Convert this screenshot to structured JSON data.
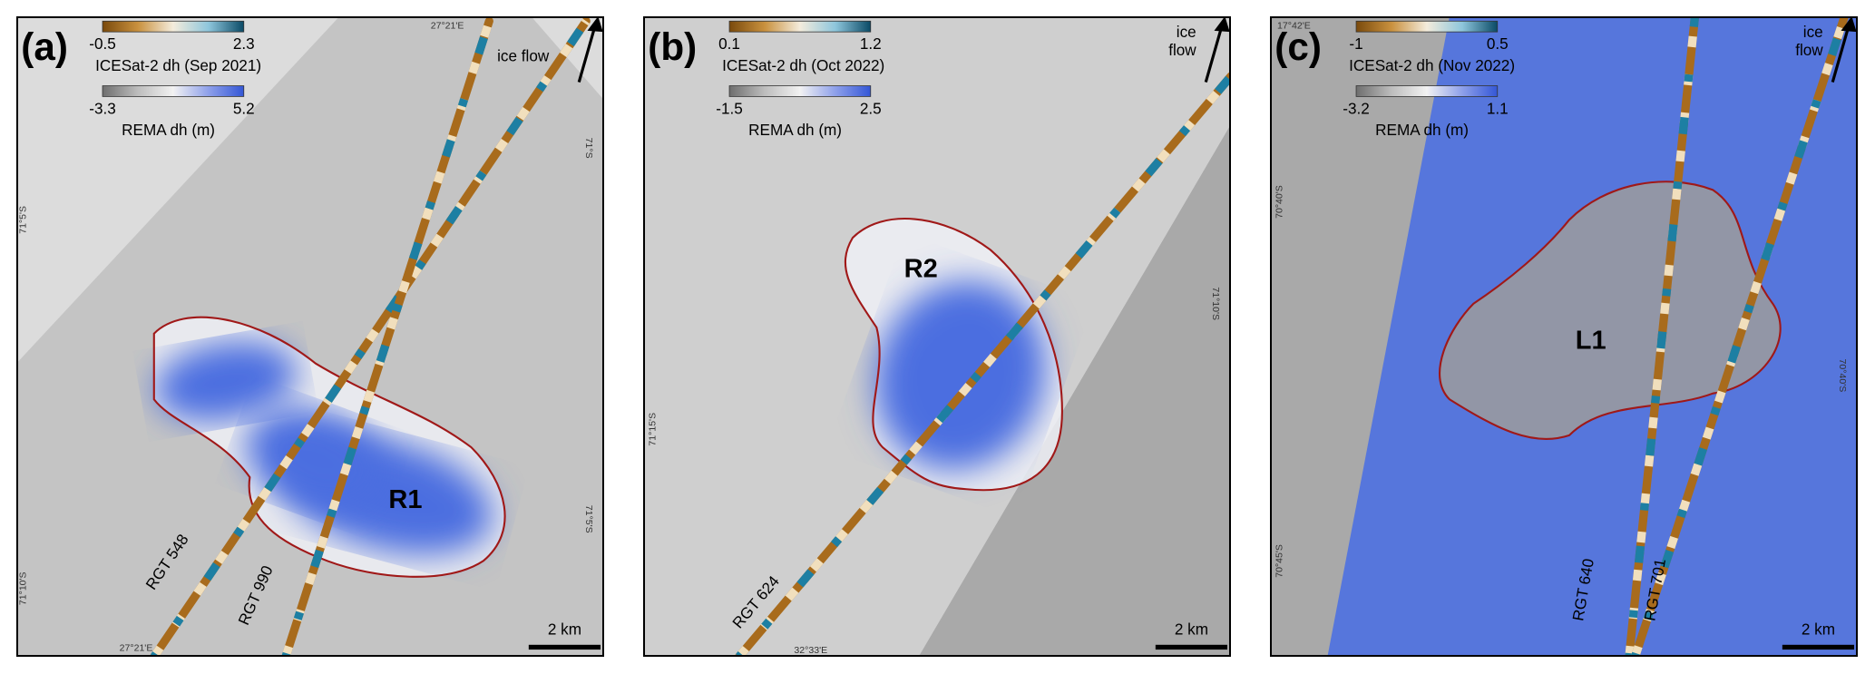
{
  "panels": [
    {
      "label": "(a)",
      "icesat": {
        "min": "-0.5",
        "max": "2.3",
        "title": "ICESat-2 dh (Sep 2021)"
      },
      "rema": {
        "min": "-3.3",
        "max": "5.2",
        "title": "REMA dh (m)"
      },
      "flow": [
        "ice flow"
      ],
      "region": "R1",
      "tracks": [
        "RGT 548",
        "RGT 990"
      ],
      "coords": [
        "27°21'E",
        "71°S",
        "71°5'S",
        "71°5'S",
        "71°10'S",
        "27°21'E"
      ],
      "scale": "2 km"
    },
    {
      "label": "(b)",
      "icesat": {
        "min": "0.1",
        "max": "1.2",
        "title": "ICESat-2 dh (Oct 2022)"
      },
      "rema": {
        "min": "-1.5",
        "max": "2.5",
        "title": "REMA dh (m)"
      },
      "flow": [
        "ice",
        "flow"
      ],
      "region": "R2",
      "tracks": [
        "RGT 624"
      ],
      "coords": [
        "71°10'S",
        "71°15'S",
        "32°33'E"
      ],
      "scale": "2 km"
    },
    {
      "label": "(c)",
      "icesat": {
        "min": "-1",
        "max": "0.5",
        "title": "ICESat-2 dh (Nov 2022)"
      },
      "rema": {
        "min": "-3.2",
        "max": "1.1",
        "title": "REMA dh (m)"
      },
      "flow": [
        "ice",
        "flow"
      ],
      "region": "L1",
      "tracks": [
        "RGT 640",
        "RGT 701"
      ],
      "coords": [
        "17°42'E",
        "70°40'S",
        "70°40'S",
        "70°45'S"
      ],
      "scale": "2 km"
    }
  ]
}
